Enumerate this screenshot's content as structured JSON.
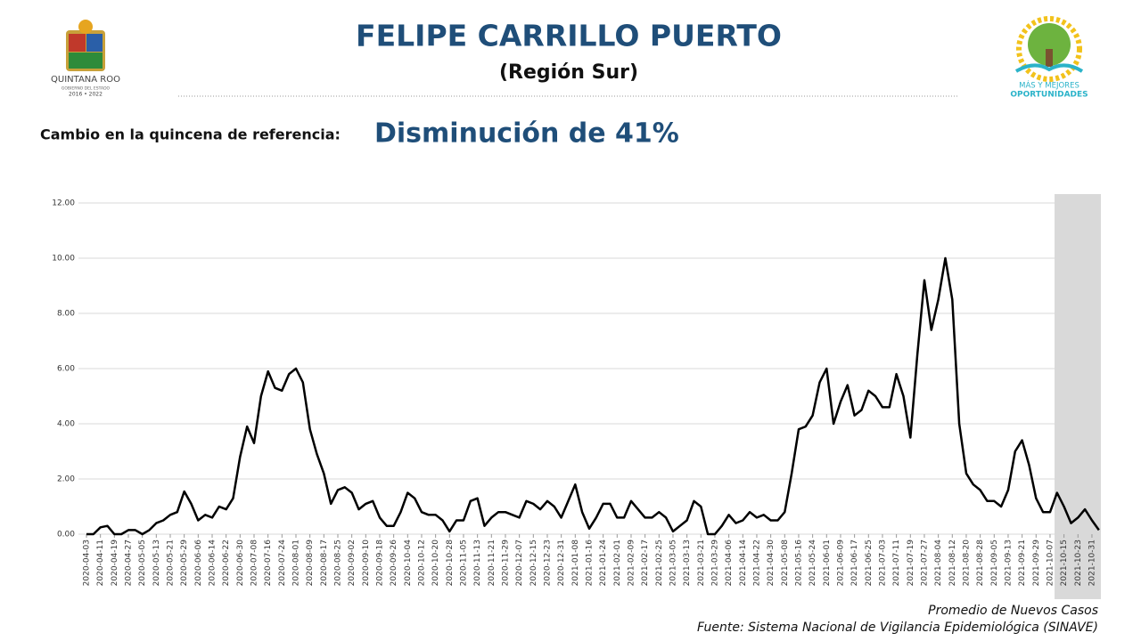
{
  "header": {
    "title": "FELIPE CARRILLO PUERTO",
    "subtitle": "(Región Sur)",
    "change_label": "Cambio en la quincena de referencia:",
    "change_value": "Disminución de 41%"
  },
  "logo_left": {
    "name": "QUINTANA ROO",
    "sub": "GOBIERNO DEL ESTADO",
    "years": "2016 • 2022"
  },
  "logo_right": {
    "line1": "MÁS Y MEJORES",
    "line2": "OPORTUNIDADES"
  },
  "footer": {
    "note": "Promedio de Nuevos Casos",
    "source": "Fuente: Sistema Nacional de Vigilancia Epidemiológica (SINAVE)"
  },
  "chart_data": {
    "type": "line",
    "color": "#000000",
    "grid": true,
    "ylim": [
      0,
      12
    ],
    "yticks": [
      {
        "value": 0,
        "label": "0.00"
      },
      {
        "value": 2,
        "label": "2.00"
      },
      {
        "value": 4,
        "label": "4.00"
      },
      {
        "value": 6,
        "label": "6.00"
      },
      {
        "value": 8,
        "label": "8.00"
      },
      {
        "value": 10,
        "label": "10.00"
      },
      {
        "value": 12,
        "label": "12.00"
      }
    ],
    "categories": [
      "2020-04-03",
      null,
      "2020-04-11",
      null,
      "2020-04-19",
      null,
      "2020-04-27",
      null,
      "2020-05-05",
      null,
      "2020-05-13",
      null,
      "2020-05-21",
      null,
      "2020-05-29",
      null,
      "2020-06-06",
      null,
      "2020-06-14",
      null,
      "2020-06-22",
      null,
      "2020-06-30",
      null,
      "2020-07-08",
      null,
      "2020-07-16",
      null,
      "2020-07-24",
      null,
      "2020-08-01",
      null,
      "2020-08-09",
      null,
      "2020-08-17",
      null,
      "2020-08-25",
      null,
      "2020-09-02",
      null,
      "2020-09-10",
      null,
      "2020-09-18",
      null,
      "2020-09-26",
      null,
      "2020-10-04",
      null,
      "2020-10-12",
      null,
      "2020-10-20",
      null,
      "2020-10-28",
      null,
      "2020-11-05",
      null,
      "2020-11-13",
      null,
      "2020-11-21",
      null,
      "2020-11-29",
      null,
      "2020-12-07",
      null,
      "2020-12-15",
      null,
      "2020-12-23",
      null,
      "2020-12-31",
      null,
      "2021-01-08",
      null,
      "2021-01-16",
      null,
      "2021-01-24",
      null,
      "2021-02-01",
      null,
      "2021-02-09",
      null,
      "2021-02-17",
      null,
      "2021-02-25",
      null,
      "2021-03-05",
      null,
      "2021-03-13",
      null,
      "2021-03-21",
      null,
      "2021-03-29",
      null,
      "2021-04-06",
      null,
      "2021-04-14",
      null,
      "2021-04-22",
      null,
      "2021-04-30",
      null,
      "2021-05-08",
      null,
      "2021-05-16",
      null,
      "2021-05-24",
      null,
      "2021-06-01",
      null,
      "2021-06-09",
      null,
      "2021-06-17",
      null,
      "2021-06-25",
      null,
      "2021-07-03",
      null,
      "2021-07-11",
      null,
      "2021-07-19",
      null,
      "2021-07-27",
      null,
      "2021-08-04",
      null,
      "2021-08-12",
      null,
      "2021-08-20",
      null,
      "2021-08-28",
      null,
      "2021-09-05",
      null,
      "2021-09-13",
      null,
      "2021-09-21",
      null,
      "2021-09-29",
      null,
      "2021-10-07",
      null,
      "2021-10-15",
      null,
      "2021-10-23",
      null,
      "2021-10-31",
      null
    ],
    "values": [
      0,
      0,
      0.25,
      0.3,
      0,
      0,
      0.15,
      0.15,
      0,
      0.15,
      0.4,
      0.5,
      0.7,
      0.8,
      1.55,
      1.1,
      0.5,
      0.7,
      0.6,
      1.0,
      0.9,
      1.3,
      2.8,
      3.9,
      3.3,
      5.0,
      5.9,
      5.3,
      5.2,
      5.8,
      6.0,
      5.5,
      3.8,
      2.9,
      2.2,
      1.1,
      1.6,
      1.7,
      1.5,
      0.9,
      1.1,
      1.2,
      0.6,
      0.3,
      0.3,
      0.8,
      1.5,
      1.3,
      0.8,
      0.7,
      0.7,
      0.5,
      0.1,
      0.5,
      0.5,
      1.2,
      1.3,
      0.3,
      0.6,
      0.8,
      0.8,
      0.7,
      0.6,
      1.2,
      1.1,
      0.9,
      1.2,
      1.0,
      0.6,
      1.2,
      1.8,
      0.8,
      0.2,
      0.6,
      1.1,
      1.1,
      0.6,
      0.6,
      1.2,
      0.9,
      0.6,
      0.6,
      0.8,
      0.6,
      0.1,
      0.3,
      0.5,
      1.2,
      1.0,
      0,
      0,
      0.3,
      0.7,
      0.4,
      0.5,
      0.8,
      0.6,
      0.7,
      0.5,
      0.5,
      0.8,
      2.2,
      3.8,
      3.9,
      4.3,
      5.5,
      6.0,
      4.0,
      4.8,
      5.4,
      4.3,
      4.5,
      5.2,
      5.0,
      4.6,
      4.6,
      5.8,
      5.0,
      3.5,
      6.5,
      9.2,
      7.4,
      8.5,
      10.0,
      8.5,
      4.0,
      2.2,
      1.8,
      1.6,
      1.2,
      1.2,
      1.0,
      1.6,
      3.0,
      3.4,
      2.5,
      1.3,
      0.8,
      0.8,
      1.5,
      1.0,
      0.4,
      0.6,
      0.9,
      0.5,
      0.15
    ]
  }
}
